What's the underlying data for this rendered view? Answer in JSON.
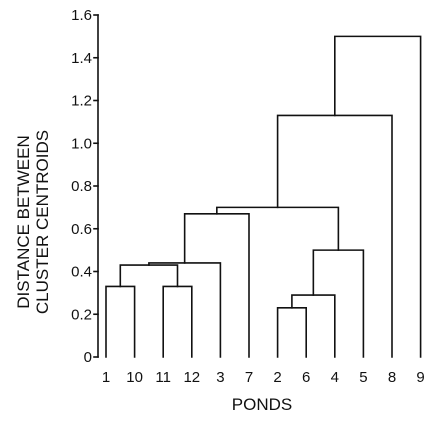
{
  "chart_data": {
    "type": "dendrogram",
    "xlabel": "PONDS",
    "ylabel_lines": [
      "DISTANCE BETWEEN",
      "CLUSTER CENTROIDS"
    ],
    "ylim": [
      0,
      1.6
    ],
    "yticks": [
      "0",
      "0.2",
      "0.4",
      "0.6",
      "0.8",
      "1.0",
      "1.2",
      "1.4",
      "1.6"
    ],
    "leaves": [
      "1",
      "10",
      "11",
      "12",
      "3",
      "7",
      "2",
      "6",
      "4",
      "5",
      "8",
      "9"
    ],
    "merges": [
      {
        "left": "L:1",
        "right": "L:10",
        "height": 0.33
      },
      {
        "left": "L:11",
        "right": "L:12",
        "height": 0.33
      },
      {
        "left": "L:2",
        "right": "L:6",
        "height": 0.23
      },
      {
        "left": "M:2",
        "right": "L:4",
        "height": 0.29
      },
      {
        "left": "M:3",
        "right": "L:5",
        "height": 0.5
      },
      {
        "left": "M:0",
        "right": "M:1",
        "height": 0.43
      },
      {
        "left": "M:5",
        "right": "L:3",
        "height": 0.44
      },
      {
        "left": "M:6",
        "right": "L:7",
        "height": 0.67
      },
      {
        "left": "M:7",
        "right": "M:4",
        "height": 0.7
      },
      {
        "left": "M:8",
        "right": "L:8",
        "height": 1.13
      },
      {
        "left": "M:9",
        "right": "L:9",
        "height": 1.5
      }
    ]
  }
}
